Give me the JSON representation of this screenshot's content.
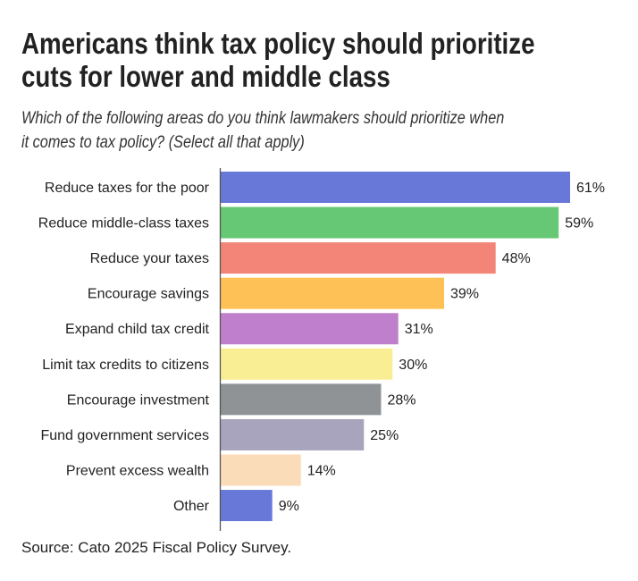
{
  "header": {
    "title_lines": [
      "Americans think tax policy should prioritize",
      "cuts for lower and middle class"
    ],
    "subtitle_lines": [
      "Which of the following areas do you think lawmakers should prioritize when",
      "it comes to tax policy? (Select all that apply)"
    ]
  },
  "footer": {
    "source": "Source: Cato 2025 Fiscal Policy Survey."
  },
  "chart_data": {
    "type": "bar",
    "orientation": "horizontal",
    "title": "Americans think tax policy should prioritize cuts for lower and middle class",
    "subtitle": "Which of the following areas do you think lawmakers should prioritize when it comes to tax policy? (Select all that apply)",
    "xlabel": "",
    "ylabel": "",
    "unit": "%",
    "xlim": [
      0,
      61
    ],
    "grid": false,
    "legend": "none",
    "categories": [
      "Reduce taxes for the poor",
      "Reduce middle-class taxes",
      "Reduce your taxes",
      "Encourage savings",
      "Expand child tax credit",
      "Limit tax credits to citizens",
      "Encourage investment",
      "Fund government services",
      "Prevent excess wealth",
      "Other"
    ],
    "values": [
      61,
      59,
      48,
      39,
      31,
      30,
      28,
      25,
      14,
      9
    ],
    "value_labels": [
      "61%",
      "59%",
      "48%",
      "39%",
      "31%",
      "30%",
      "28%",
      "25%",
      "14%",
      "9%"
    ],
    "colors": [
      "#6878D9",
      "#66C874",
      "#F28577",
      "#FDC156",
      "#C07FCC",
      "#FAEE95",
      "#909396",
      "#A8A4BE",
      "#FADDB8",
      "#6878D9"
    ],
    "source": "Source: Cato 2025 Fiscal Policy Survey."
  }
}
